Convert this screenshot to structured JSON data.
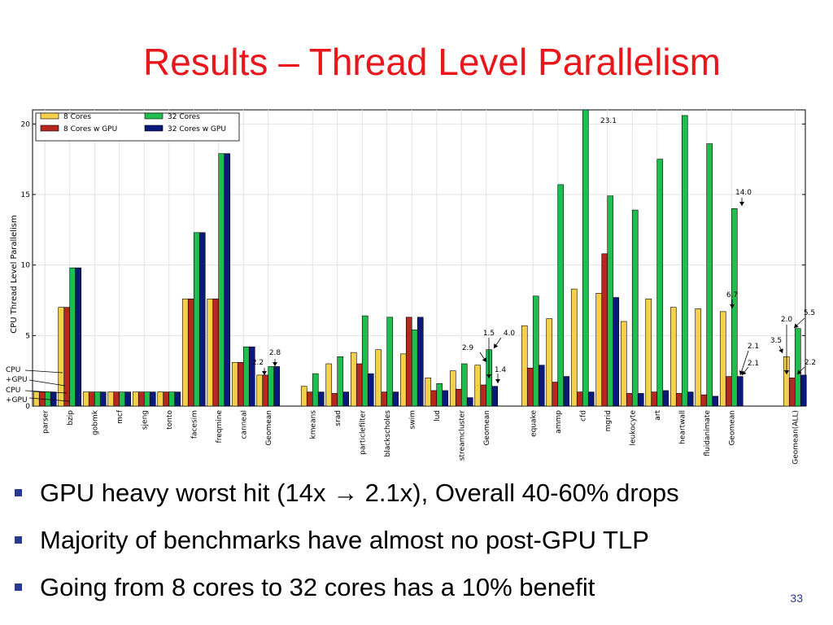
{
  "slide": {
    "title": "Results – Thread Level Parallelism",
    "page_number": "33",
    "bullets": [
      "GPU heavy worst hit (14x → 2.1x), Overall 40-60% drops",
      "Majority of benchmarks have almost no post-GPU TLP",
      "Going from 8 cores to 32 cores has a 10% benefit"
    ]
  },
  "colors": {
    "title": "#e8171c",
    "bullet": "#2b3990",
    "series": [
      "#f5d04a",
      "#b5271f",
      "#1fbf4f",
      "#0a1a7a"
    ]
  },
  "chart_data": {
    "type": "bar",
    "ylabel": "CPU Thread Level Parallelism",
    "xlabel": "",
    "ylim": [
      0,
      21
    ],
    "yticks": [
      0,
      5,
      10,
      15,
      20
    ],
    "grid": true,
    "legend_position": "top-left",
    "series_names": [
      "8 Cores",
      "8 Cores w GPU",
      "32 Cores",
      "32 Cores w GPU"
    ],
    "groups": [
      {
        "categories": [
          "parser",
          "bzip",
          "gobmk",
          "mcf",
          "sjeng",
          "tonto",
          "facesim",
          "freqmine",
          "canneal",
          "Geomean"
        ],
        "series": [
          [
            1.0,
            7.0,
            1.0,
            1.0,
            1.0,
            1.0,
            7.6,
            7.6,
            3.1,
            2.2
          ],
          [
            1.0,
            7.0,
            1.0,
            1.0,
            1.0,
            1.0,
            7.6,
            7.6,
            3.1,
            2.2
          ],
          [
            1.0,
            9.8,
            1.0,
            1.0,
            1.0,
            1.0,
            12.3,
            17.9,
            4.2,
            2.8
          ],
          [
            1.0,
            9.8,
            1.0,
            1.0,
            1.0,
            1.0,
            12.3,
            17.9,
            4.2,
            2.8
          ]
        ]
      },
      {
        "categories": [
          "kmeans",
          "srad",
          "particlefilter",
          "blackscholes",
          "swim",
          "lud",
          "streamcluster",
          "Geomean"
        ],
        "series": [
          [
            1.4,
            3.0,
            3.8,
            4.0,
            3.7,
            2.0,
            2.5,
            2.9
          ],
          [
            1.0,
            0.9,
            3.0,
            1.0,
            6.3,
            1.1,
            1.2,
            1.5
          ],
          [
            2.3,
            3.5,
            6.4,
            6.3,
            5.4,
            1.6,
            3.0,
            4.0
          ],
          [
            1.0,
            1.0,
            2.3,
            1.0,
            6.3,
            1.1,
            0.6,
            1.4
          ]
        ]
      },
      {
        "categories": [
          "equake",
          "ammp",
          "cfd",
          "mgrid",
          "leukocyte",
          "art",
          "heartwall",
          "fluidanimate",
          "Geomean"
        ],
        "series": [
          [
            5.7,
            6.2,
            8.3,
            8.0,
            6.0,
            7.6,
            7.0,
            6.9,
            6.7
          ],
          [
            2.7,
            1.7,
            1.0,
            10.8,
            0.9,
            1.0,
            0.9,
            0.8,
            2.1
          ],
          [
            7.8,
            15.7,
            23.1,
            14.9,
            13.9,
            17.5,
            20.6,
            18.6,
            14.0
          ],
          [
            2.9,
            2.1,
            1.0,
            7.7,
            0.9,
            1.1,
            1.0,
            0.7,
            2.1
          ]
        ]
      },
      {
        "categories": [
          "Geomean(ALL)"
        ],
        "series": [
          [
            3.5
          ],
          [
            2.0
          ],
          [
            5.5
          ],
          [
            2.2
          ]
        ]
      }
    ],
    "annotations": [
      "2.2",
      "2.8",
      "2.9",
      "1.5",
      "4.0",
      "1.4",
      "23.1",
      "14.0",
      "6.7",
      "2.1",
      "2.1",
      "3.5",
      "2.0",
      "5.5",
      "2.2"
    ],
    "left_callouts": [
      "CPU",
      "+GPU",
      "CPU",
      "+GPU"
    ]
  }
}
